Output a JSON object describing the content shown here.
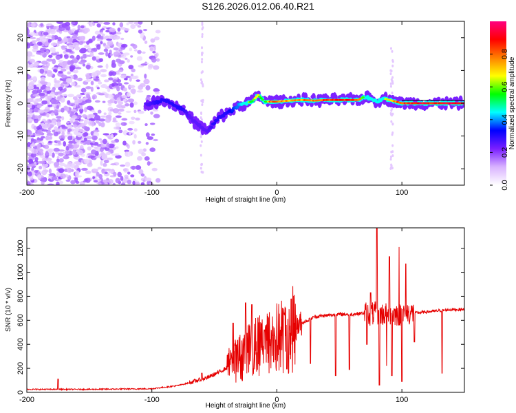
{
  "title": "S126.2026.012.06.40.R21",
  "chart_data": [
    {
      "type": "heatmap",
      "name": "spectrogram",
      "xlabel": "Height of straight line (km)",
      "ylabel": "Frequency (Hz)",
      "xlim": [
        -200,
        150
      ],
      "ylim": [
        -25,
        25
      ],
      "x_ticks": [
        -200,
        -100,
        0,
        100
      ],
      "x_tick_labels": [
        "-200",
        "-100",
        "0",
        "100"
      ],
      "y_ticks": [
        -20,
        -10,
        0,
        10,
        20
      ],
      "y_tick_labels": [
        "-20",
        "-10",
        "0",
        "10",
        "20"
      ],
      "colorbar": {
        "label": "Normalized spectral amplitude",
        "range": [
          0,
          1
        ],
        "ticks": [
          0,
          0.2,
          0.4,
          0.6,
          0.8
        ],
        "tick_labels": [
          "0.0",
          "0.2",
          "0.4",
          "0.6",
          "0.8"
        ],
        "colormap": [
          "#ffffff",
          "#d9b3ff",
          "#7a1fff",
          "#0000ff",
          "#00ffff",
          "#00ff00",
          "#ffff00",
          "#ff8000",
          "#ff0000",
          "#ff0080"
        ]
      },
      "tone_track": {
        "x": [
          -105,
          -95,
          -90,
          -85,
          -80,
          -75,
          -70,
          -65,
          -60,
          -55,
          -50,
          -45,
          -40,
          -35,
          -30,
          -25,
          -20,
          -15,
          -10,
          -5,
          0,
          10,
          20,
          30,
          40,
          50,
          60,
          65,
          70,
          75,
          80,
          85,
          90,
          95,
          100,
          110,
          120,
          130,
          140,
          150
        ],
        "freq": [
          -0.5,
          0.5,
          1.0,
          0.0,
          -1.0,
          -2.0,
          -4.0,
          -6.0,
          -7.5,
          -8.5,
          -6.0,
          -4.0,
          -3.0,
          -2.0,
          -0.5,
          0.0,
          0.5,
          2.5,
          0.5,
          0.5,
          0.5,
          0.8,
          1.0,
          0.8,
          1.0,
          1.0,
          1.0,
          1.0,
          2.0,
          1.5,
          0.5,
          1.5,
          1.0,
          0.5,
          0.0,
          0.0,
          0.0,
          0.0,
          0.0,
          0.0
        ],
        "amplitude": [
          0.25,
          0.3,
          0.3,
          0.3,
          0.3,
          0.3,
          0.25,
          0.25,
          0.25,
          0.25,
          0.3,
          0.3,
          0.3,
          0.35,
          0.4,
          0.5,
          0.6,
          0.7,
          0.5,
          0.8,
          0.8,
          0.7,
          0.75,
          0.8,
          0.85,
          0.85,
          0.85,
          0.8,
          0.5,
          0.45,
          0.45,
          0.5,
          0.75,
          0.75,
          0.85,
          0.9,
          0.9,
          0.9,
          0.9,
          0.9
        ],
        "reference_line_freq": 0.5
      },
      "noise_region": {
        "x_range": [
          -200,
          -95
        ],
        "amplitude_range": [
          0.05,
          0.2
        ]
      }
    },
    {
      "type": "line",
      "name": "snr",
      "xlabel": "Height of straight line (km)",
      "ylabel": "SNR (10 * v/v)",
      "xlim": [
        -200,
        150
      ],
      "ylim": [
        0,
        1370
      ],
      "x_ticks": [
        -200,
        -100,
        0,
        100
      ],
      "x_tick_labels": [
        "-200",
        "-100",
        "0",
        "100"
      ],
      "y_ticks": [
        0,
        200,
        400,
        600,
        800,
        1000,
        1200
      ],
      "y_tick_labels": [
        "0",
        "200",
        "400",
        "600",
        "800",
        "1000",
        "1200"
      ],
      "color": "#e60000",
      "series": [
        {
          "name": "SNR baseline",
          "x": [
            -200,
            -150,
            -100,
            -80,
            -70,
            -60,
            -55,
            -50,
            -45,
            -40,
            -35,
            -30,
            -25,
            -20,
            -15,
            -10,
            -5,
            0,
            5,
            10,
            15,
            20,
            25,
            30,
            40,
            50,
            60,
            70,
            75,
            80,
            85,
            90,
            95,
            100,
            105,
            110,
            120,
            130,
            140,
            150
          ],
          "y": [
            25,
            25,
            30,
            55,
            80,
            110,
            125,
            150,
            175,
            205,
            250,
            290,
            330,
            350,
            380,
            400,
            420,
            450,
            470,
            500,
            540,
            580,
            600,
            630,
            640,
            650,
            650,
            660,
            650,
            660,
            650,
            660,
            650,
            650,
            660,
            660,
            670,
            680,
            690,
            690
          ]
        }
      ],
      "spikes": {
        "up": [
          [
            -175,
            110
          ],
          [
            -60,
            160
          ],
          [
            -35,
            580
          ],
          [
            -25,
            745
          ],
          [
            -20,
            730
          ],
          [
            -15,
            620
          ],
          [
            -10,
            520
          ],
          [
            75,
            830
          ],
          [
            80,
            1370
          ],
          [
            90,
            1130
          ],
          [
            98,
            1210
          ],
          [
            103,
            1070
          ]
        ],
        "down": [
          [
            8,
            195
          ],
          [
            27,
            240
          ],
          [
            47,
            140
          ],
          [
            58,
            190
          ],
          [
            72,
            400
          ],
          [
            82,
            60
          ],
          [
            88,
            220
          ],
          [
            92,
            140
          ],
          [
            100,
            90
          ],
          [
            110,
            420
          ],
          [
            132,
            160
          ]
        ]
      }
    }
  ]
}
